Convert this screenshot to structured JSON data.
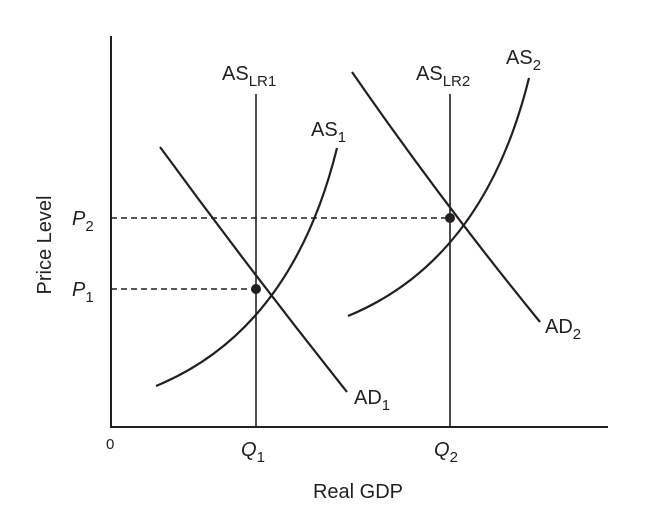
{
  "axes": {
    "y_label": "Price Level",
    "x_label": "Real GDP",
    "origin": "0"
  },
  "curves": {
    "as_lr1": {
      "main": "AS",
      "sub": "LR1"
    },
    "as_lr2": {
      "main": "AS",
      "sub": "LR2"
    },
    "as1": {
      "main": "AS",
      "sub": "1"
    },
    "as2": {
      "main": "AS",
      "sub": "2"
    },
    "ad1": {
      "main": "AD",
      "sub": "1"
    },
    "ad2": {
      "main": "AD",
      "sub": "2"
    }
  },
  "levels": {
    "p1": {
      "main": "P",
      "sub": "1"
    },
    "p2": {
      "main": "P",
      "sub": "2"
    },
    "q1": {
      "main": "Q",
      "sub": "1"
    },
    "q2": {
      "main": "Q",
      "sub": "2"
    }
  },
  "colors": {
    "ink": "#231f20",
    "background": "#ffffff"
  }
}
